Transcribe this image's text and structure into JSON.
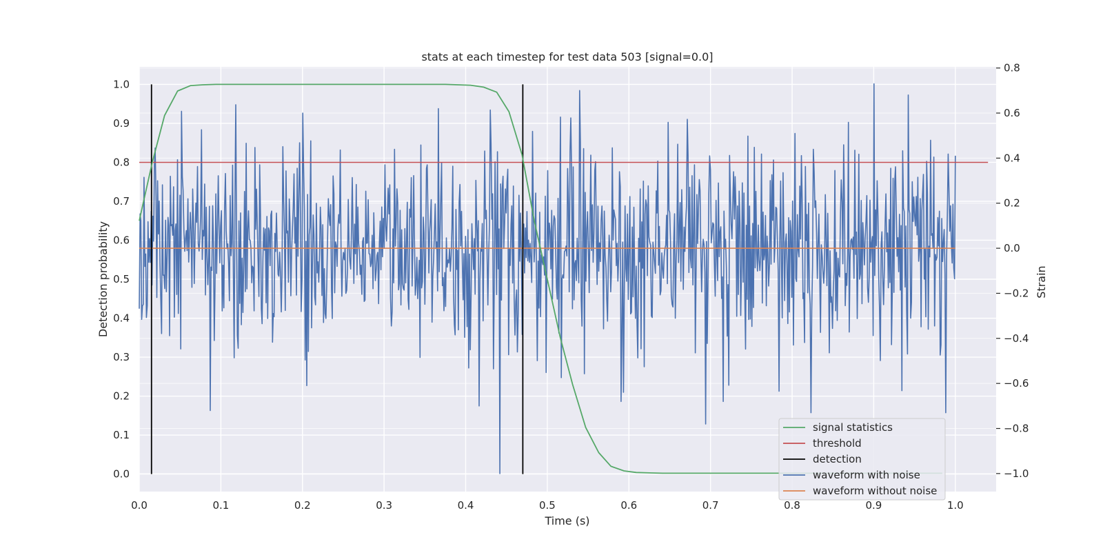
{
  "chart_data": {
    "type": "line",
    "title": "stats at each timestep for test data 503 [signal=0.0]",
    "xlabel": "Time (s)",
    "ylabel": "Detection probability",
    "y2label": "Strain",
    "xlim": [
      0.0,
      1.05
    ],
    "ylim": [
      -0.045,
      1.045
    ],
    "y2lim": [
      -1.08,
      0.805
    ],
    "xticks": [
      "0.0",
      "0.1",
      "0.2",
      "0.3",
      "0.4",
      "0.5",
      "0.6",
      "0.7",
      "0.8",
      "0.9",
      "1.0"
    ],
    "yticks": [
      "0.0",
      "0.1",
      "0.2",
      "0.3",
      "0.4",
      "0.5",
      "0.6",
      "0.7",
      "0.8",
      "0.9",
      "1.0"
    ],
    "y2ticks": [
      "−1.0",
      "−0.8",
      "−0.6",
      "−0.4",
      "−0.2",
      "0.0",
      "0.2",
      "0.4",
      "0.6",
      "0.8"
    ],
    "grid": true,
    "legend_position": "bottom-right",
    "series": [
      {
        "name": "signal statistics",
        "color": "#55a868",
        "axis": "left",
        "x": [
          0.0,
          0.016,
          0.031,
          0.047,
          0.063,
          0.078,
          0.094,
          0.109,
          0.125,
          0.2,
          0.3,
          0.375,
          0.39,
          0.406,
          0.422,
          0.438,
          0.453,
          0.469,
          0.484,
          0.5,
          0.516,
          0.531,
          0.547,
          0.563,
          0.578,
          0.594,
          0.609,
          0.625,
          0.641,
          0.7,
          0.8,
          0.9,
          0.984
        ],
        "y": [
          0.65,
          0.8,
          0.92,
          0.983,
          0.997,
          0.999,
          1.0,
          1.0,
          1.0,
          1.0,
          1.0,
          1.0,
          0.999,
          0.998,
          0.993,
          0.98,
          0.93,
          0.82,
          0.65,
          0.5,
          0.35,
          0.23,
          0.12,
          0.055,
          0.02,
          0.008,
          0.004,
          0.003,
          0.002,
          0.002,
          0.002,
          0.002,
          0.002
        ]
      },
      {
        "name": "threshold",
        "color": "#c44e52",
        "axis": "left",
        "x": [
          0.0,
          1.04
        ],
        "y": [
          0.8,
          0.8
        ]
      },
      {
        "name": "detection",
        "color": "#000000",
        "axis": "left",
        "type": "vlines",
        "x": [
          0.015,
          0.47
        ],
        "y": [
          0.0,
          1.0
        ]
      },
      {
        "name": "waveform with noise",
        "color": "#4c72b0",
        "axis": "right",
        "x_range": [
          0.0,
          1.0
        ],
        "points": 1024,
        "noise_sigma": 0.22,
        "anchors": [
          {
            "x": 0.087,
            "y": -0.72
          },
          {
            "x": 0.2,
            "y": 0.6
          },
          {
            "x": 0.367,
            "y": 0.62
          },
          {
            "x": 0.416,
            "y": -0.7
          },
          {
            "x": 0.442,
            "y": -1.0
          },
          {
            "x": 0.54,
            "y": 0.7
          },
          {
            "x": 0.694,
            "y": -0.78
          },
          {
            "x": 0.823,
            "y": -0.73
          },
          {
            "x": 0.9,
            "y": 0.73
          },
          {
            "x": 0.988,
            "y": -0.73
          }
        ]
      },
      {
        "name": "waveform without noise",
        "color": "#dd8452",
        "axis": "right",
        "x": [
          0.0,
          1.0
        ],
        "y": [
          0.0,
          0.0
        ]
      }
    ]
  }
}
